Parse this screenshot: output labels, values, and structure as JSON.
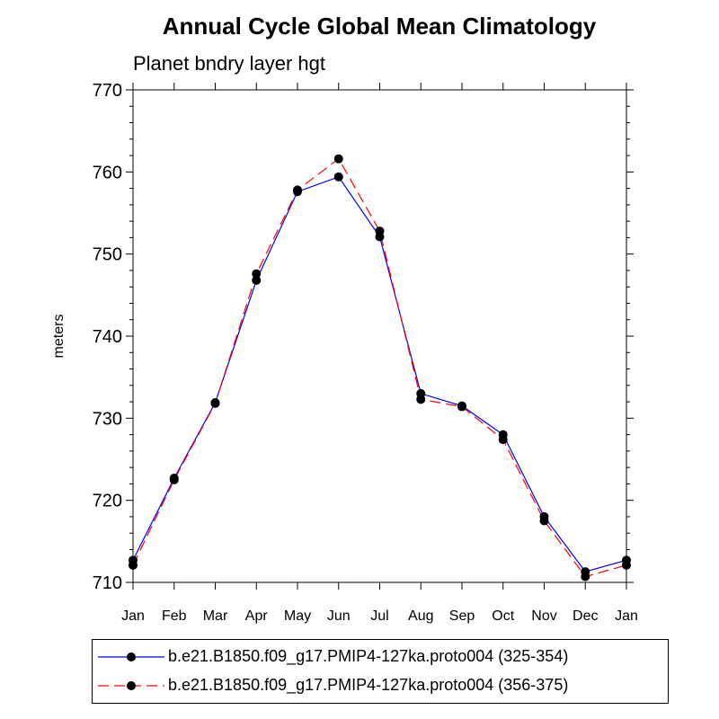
{
  "chart_data": {
    "type": "line",
    "title": "Annual Cycle Global Mean Climatology",
    "subtitle": "Planet bndry layer hgt",
    "xlabel": "",
    "ylabel": "meters",
    "categories": [
      "Jan",
      "Feb",
      "Mar",
      "Apr",
      "May",
      "Jun",
      "Jul",
      "Aug",
      "Sep",
      "Oct",
      "Nov",
      "Dec",
      "Jan"
    ],
    "ylim": [
      710,
      770
    ],
    "yticks": [
      710,
      720,
      730,
      740,
      750,
      760,
      770
    ],
    "grid": false,
    "legend_position": "bottom",
    "series": [
      {
        "name": "b.e21.B1850.f09_g17.PMIP4-127ka.proto004 (325-354)",
        "color": "#0000ff",
        "dash": "solid",
        "marker": "circle",
        "values": [
          712.7,
          722.7,
          731.9,
          746.8,
          757.6,
          759.4,
          752.1,
          733.0,
          731.5,
          728.0,
          718.0,
          711.3,
          712.7
        ]
      },
      {
        "name": "b.e21.B1850.f09_g17.PMIP4-127ka.proto004 (356-375)",
        "color": "#ff0000",
        "dash": "dashed",
        "marker": "circle",
        "values": [
          712.1,
          722.5,
          731.8,
          747.6,
          757.8,
          761.6,
          752.8,
          732.3,
          731.4,
          727.4,
          717.5,
          710.7,
          712.1
        ]
      }
    ]
  }
}
